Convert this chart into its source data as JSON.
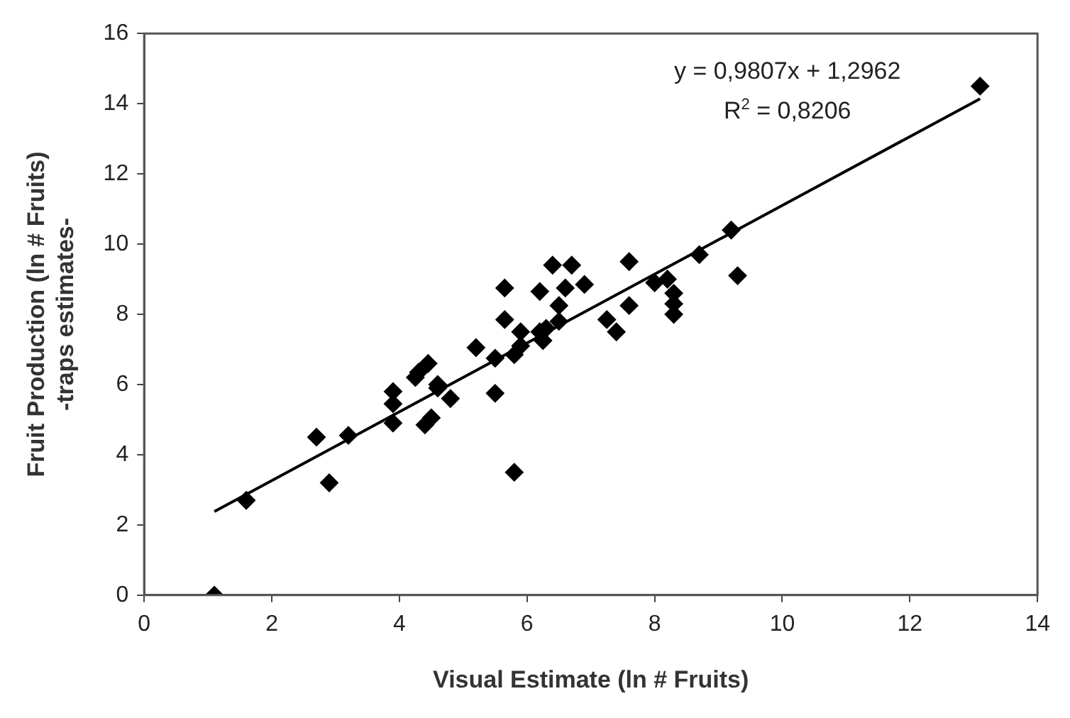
{
  "chart_data": {
    "type": "scatter",
    "xlabel": "Visual Estimate (ln # Fruits)",
    "ylabel": "Fruit Production (ln # Fruits)\n-traps estimates-",
    "xlim": [
      0,
      14
    ],
    "xticks": [
      0,
      2,
      4,
      6,
      8,
      10,
      12,
      14
    ],
    "ylim": [
      0,
      16
    ],
    "yticks": [
      0,
      2,
      4,
      6,
      8,
      10,
      12,
      14,
      16
    ],
    "grid": false,
    "legend": false,
    "marker": "diamond",
    "annotations": [
      "y = 0,9807x + 1,2962",
      "R$^{2}$ = 0,8206"
    ],
    "series": [
      {
        "color": "#000000",
        "x": [
          1.1,
          1.6,
          2.7,
          2.9,
          3.2,
          3.9,
          3.9,
          3.9,
          4.25,
          4.3,
          4.4,
          4.45,
          4.5,
          4.6,
          4.6,
          4.8,
          5.2,
          5.5,
          5.5,
          5.65,
          5.65,
          5.8,
          5.8,
          5.9,
          5.9,
          6.2,
          6.2,
          6.25,
          6.3,
          6.4,
          6.5,
          6.5,
          6.6,
          6.7,
          6.9,
          7.25,
          7.4,
          7.6,
          7.6,
          8.0,
          8.2,
          8.3,
          8.3,
          8.3,
          8.7,
          9.2,
          9.3,
          13.1
        ],
        "values": [
          0,
          2.7,
          4.5,
          3.2,
          4.55,
          5.8,
          5.45,
          4.9,
          6.2,
          6.35,
          4.85,
          6.6,
          5.05,
          6.0,
          5.9,
          5.6,
          7.05,
          5.75,
          6.75,
          8.75,
          7.85,
          3.5,
          6.85,
          7.1,
          7.5,
          8.65,
          7.5,
          7.25,
          7.6,
          9.4,
          7.8,
          8.25,
          8.75,
          9.4,
          8.85,
          7.85,
          7.5,
          9.5,
          8.25,
          8.9,
          9.0,
          8.6,
          8.3,
          8.0,
          9.7,
          10.4,
          9.1,
          14.5
        ]
      },
      {
        "type": "line",
        "color": "#000000",
        "marker": "none",
        "x": [
          1.1,
          13.1
        ],
        "values": [
          2.38,
          14.14
        ]
      }
    ]
  }
}
